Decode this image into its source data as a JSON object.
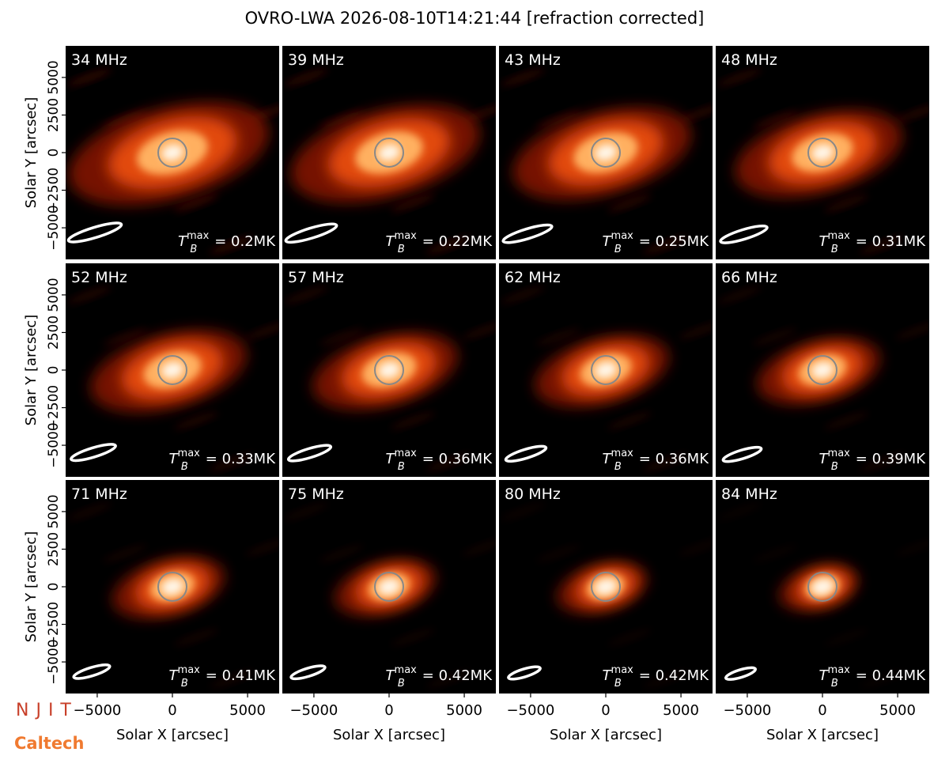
{
  "chart_data": {
    "type": "image-grid",
    "title": "OVRO-LWA 2026-08-10T14:21:44 [refraction corrected]",
    "xlabel": "Solar X [arcsec]",
    "ylabel": "Solar Y [arcsec]",
    "xlim": [
      -7100,
      7100
    ],
    "ylim": [
      -7100,
      7100
    ],
    "xticks": [
      {
        "value": -5000,
        "label": "−5000"
      },
      0,
      5000
    ],
    "yticks": [
      {
        "value": -5000,
        "label": "−5000"
      },
      {
        "value": -2500,
        "label": "−2500"
      },
      0,
      2500,
      5000
    ],
    "tb_symbol": "T",
    "tb_sub": "B",
    "tb_sup": "max",
    "panels": [
      {
        "label": "34 MHz",
        "tb": "= 0.2MK"
      },
      {
        "label": "39 MHz",
        "tb": "= 0.22MK"
      },
      {
        "label": "43 MHz",
        "tb": "= 0.25MK"
      },
      {
        "label": "48 MHz",
        "tb": "= 0.31MK"
      },
      {
        "label": "52 MHz",
        "tb": "= 0.33MK"
      },
      {
        "label": "57 MHz",
        "tb": "= 0.36MK"
      },
      {
        "label": "62 MHz",
        "tb": "= 0.36MK"
      },
      {
        "label": "66 MHz",
        "tb": "= 0.39MK"
      },
      {
        "label": "71 MHz",
        "tb": "= 0.41MK"
      },
      {
        "label": "75 MHz",
        "tb": "= 0.42MK"
      },
      {
        "label": "80 MHz",
        "tb": "= 0.42MK"
      },
      {
        "label": "84 MHz",
        "tb": "= 0.44MK"
      }
    ]
  },
  "logos": {
    "njit": "NJIT",
    "caltech": "Caltech"
  }
}
